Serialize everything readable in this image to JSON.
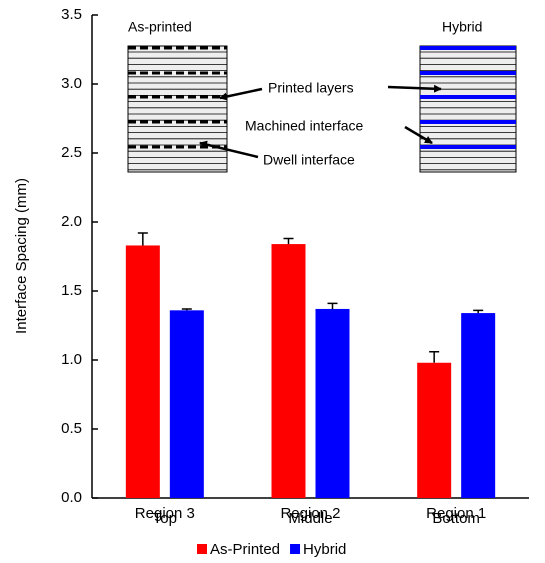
{
  "chart_data": {
    "type": "bar",
    "y_label": "Interface Spacing (mm)",
    "categories": [
      "Region 3",
      "Region 2",
      "Region 1"
    ],
    "category_sublabels": [
      "Top",
      "Middle",
      "Bottom"
    ],
    "series": [
      {
        "name": "As-Printed",
        "color": "#ff0000",
        "values": [
          1.83,
          1.84,
          0.98
        ],
        "errors": [
          0.09,
          0.04,
          0.08
        ]
      },
      {
        "name": "Hybrid",
        "color": "#0000ff",
        "values": [
          1.36,
          1.37,
          1.34
        ],
        "errors": [
          0.01,
          0.04,
          0.02
        ]
      }
    ],
    "ylim": [
      0,
      3.5
    ],
    "yticks": [
      {
        "value": 0,
        "label": "0.0"
      },
      {
        "value": 0.5,
        "label": "0.5"
      },
      {
        "value": 1,
        "label": "1.0"
      },
      {
        "value": 1.5,
        "label": "1.5"
      },
      {
        "value": 2,
        "label": "2.0"
      },
      {
        "value": 2.5,
        "label": "2.5"
      },
      {
        "value": 3,
        "label": "3.0"
      },
      {
        "value": 3.5,
        "label": "3.5"
      }
    ],
    "grid": false,
    "legend": "bottom",
    "annotations": {
      "as_printed": "As-printed",
      "hybrid": "Hybrid",
      "printed_layers": "Printed layers",
      "machined_interface": "Machined interface",
      "dwell_interface": "Dwell interface"
    }
  }
}
